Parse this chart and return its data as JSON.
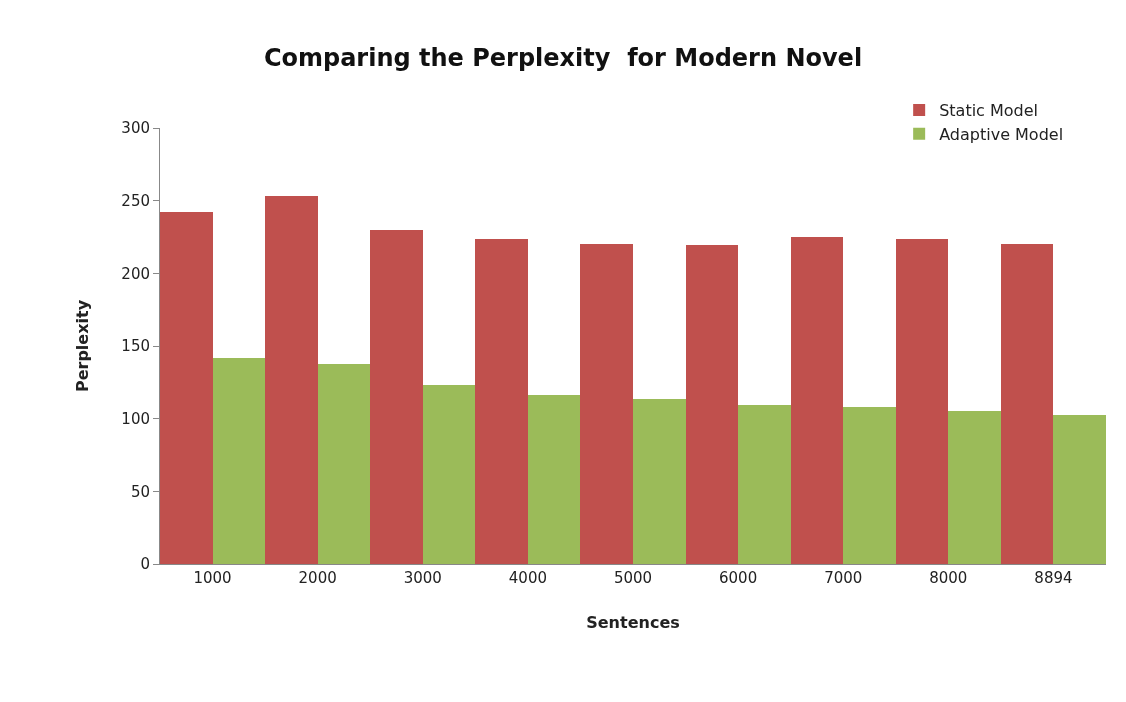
{
  "chart_data": {
    "type": "bar",
    "title": "Comparing the Perplexity  for Modern Novel",
    "xlabel": "Sentences",
    "ylabel": "Perplexity",
    "categories": [
      "1000",
      "2000",
      "3000",
      "4000",
      "5000",
      "6000",
      "7000",
      "8000",
      "8894"
    ],
    "series": [
      {
        "name": "Static Model",
        "color": "#c0504d",
        "values": [
          242,
          253,
          230,
          223.5,
          220.5,
          219.5,
          225,
          223.5,
          220.5
        ]
      },
      {
        "name": "Adaptive Model",
        "color": "#9bbb59",
        "values": [
          141.5,
          137.5,
          123.5,
          116,
          113.5,
          109.5,
          108,
          105,
          102.5
        ]
      }
    ],
    "ylim": [
      0,
      300
    ],
    "yticks": [
      0,
      50,
      100,
      150,
      200,
      250,
      300
    ],
    "legend": "top right"
  }
}
